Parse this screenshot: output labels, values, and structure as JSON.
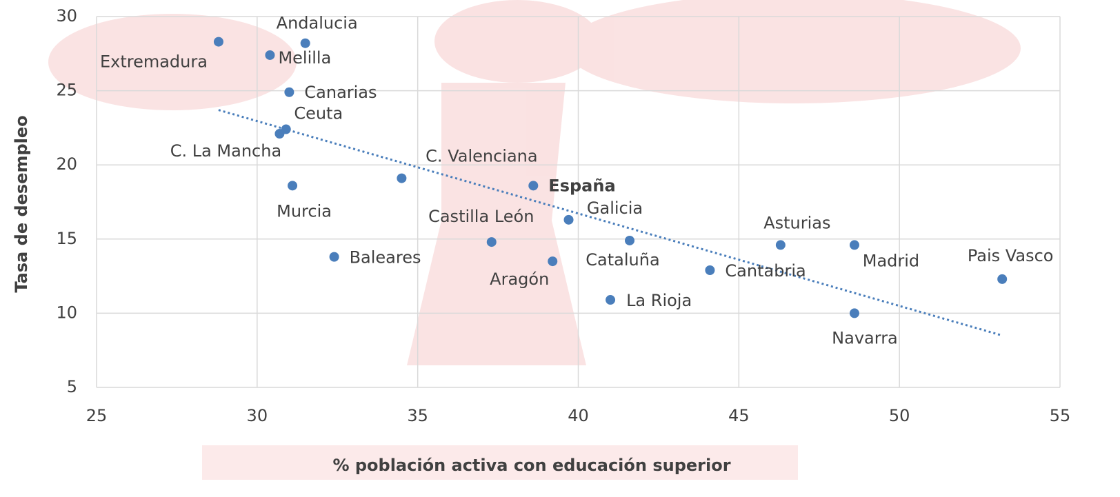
{
  "chart_data": {
    "type": "scatter",
    "xlabel": "% población activa con educación superior",
    "ylabel": "Tasa de desempleo",
    "labels": [
      "Extremadura",
      "Andalucia",
      "Melilla",
      "Canarias",
      "Ceuta",
      "C. La Mancha",
      "Murcia",
      "Baleares",
      "C. Valenciana",
      "España",
      "Castilla León",
      "Aragón",
      "Galicia",
      "Cataluña",
      "La Rioja",
      "Cantabria",
      "Asturias",
      "Madrid",
      "Navarra",
      "Pais Vasco"
    ],
    "x": [
      28.8,
      31.5,
      30.4,
      31.0,
      30.9,
      30.7,
      31.1,
      32.4,
      34.5,
      38.6,
      37.3,
      39.2,
      39.7,
      41.6,
      41.0,
      44.1,
      46.3,
      48.6,
      48.6,
      53.2
    ],
    "y": [
      28.3,
      28.2,
      27.4,
      24.9,
      22.4,
      22.1,
      18.6,
      13.8,
      19.1,
      18.6,
      14.8,
      13.5,
      16.3,
      14.9,
      10.9,
      12.9,
      14.6,
      14.6,
      10.0,
      12.3
    ],
    "color": "#4a7ebb",
    "trendline": {
      "x": [
        28.8,
        53.2
      ],
      "y": [
        23.7,
        8.5
      ],
      "color": "#4a7ebb"
    },
    "xlim": [
      25,
      55
    ],
    "xticks": [
      25,
      30,
      35,
      40,
      45,
      50,
      55
    ],
    "ylim": [
      5,
      30
    ],
    "yticks": [
      5,
      10,
      15,
      20,
      25,
      30
    ],
    "grid": true
  }
}
